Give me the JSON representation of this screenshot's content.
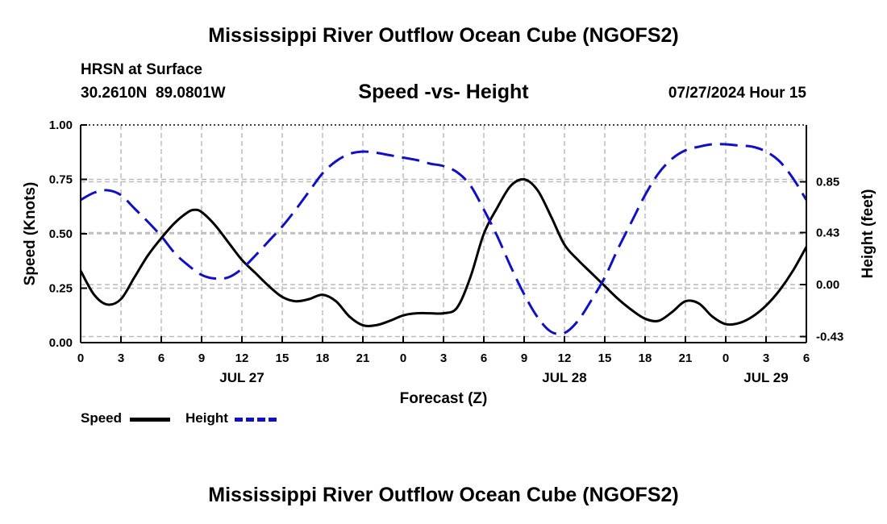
{
  "header": {
    "title": "Mississippi River Outflow Ocean Cube (NGOFS2)",
    "station_name": "HRSN at Surface",
    "coordinates": "30.2610N  89.0801W",
    "subtitle": "Speed -vs- Height",
    "datetime": "07/27/2024 Hour 15"
  },
  "footer": {
    "title": "Mississippi River Outflow Ocean Cube (NGOFS2)"
  },
  "legend": {
    "speed_label": "Speed",
    "height_label": "Height"
  },
  "colors": {
    "speed": "#000000",
    "height": "#1010c8",
    "grid": "#bbbbbb"
  },
  "chart_data": {
    "type": "line",
    "xlabel": "Forecast (Z)",
    "ylabel": "Speed (Knots)",
    "ylabel_right": "Height (feet)",
    "x_unit": "hours since 07/27 00Z",
    "xlim": [
      0,
      54
    ],
    "x_ticks": [
      0,
      3,
      6,
      9,
      12,
      15,
      18,
      21,
      24,
      27,
      30,
      33,
      36,
      39,
      42,
      45,
      48,
      51,
      54
    ],
    "x_tick_labels": [
      "0",
      "3",
      "6",
      "9",
      "12",
      "15",
      "18",
      "21",
      "0",
      "3",
      "6",
      "9",
      "12",
      "15",
      "18",
      "21",
      "0",
      "3",
      "6"
    ],
    "day_labels": [
      {
        "x": 12,
        "label": "JUL 27"
      },
      {
        "x": 36,
        "label": "JUL 28"
      },
      {
        "x": 51,
        "label": "JUL 29"
      }
    ],
    "ylim": [
      0,
      1.0
    ],
    "y_ticks": [
      0.0,
      0.25,
      0.5,
      0.75,
      1.0
    ],
    "y_tick_labels": [
      "0.00",
      "0.25",
      "0.50",
      "0.75",
      "1.00"
    ],
    "ylim_right": [
      -0.48,
      1.32
    ],
    "y_right_ticks": [
      -0.43,
      0.0,
      0.43,
      0.85
    ],
    "y_right_tick_labels": [
      "-0.43",
      "0.00",
      "0.43",
      "0.85"
    ],
    "grid": true,
    "series": [
      {
        "name": "Speed",
        "axis": "left",
        "style": "solid",
        "x": [
          0,
          1,
          2,
          3,
          4,
          5,
          6,
          7,
          8,
          8.5,
          9,
          10,
          11,
          12,
          13,
          14,
          15,
          16,
          17,
          18,
          19,
          20,
          21,
          22,
          23,
          24,
          25,
          26,
          27,
          28,
          29,
          30,
          31,
          32,
          33,
          34,
          35,
          36,
          37,
          38,
          39,
          40,
          41,
          42,
          43,
          44,
          45,
          46,
          47,
          48,
          49,
          50,
          51,
          52,
          53,
          54
        ],
        "y": [
          0.33,
          0.22,
          0.175,
          0.2,
          0.3,
          0.4,
          0.48,
          0.55,
          0.6,
          0.61,
          0.6,
          0.54,
          0.46,
          0.38,
          0.32,
          0.26,
          0.21,
          0.19,
          0.2,
          0.22,
          0.19,
          0.12,
          0.08,
          0.08,
          0.1,
          0.125,
          0.135,
          0.135,
          0.135,
          0.16,
          0.3,
          0.5,
          0.62,
          0.72,
          0.75,
          0.7,
          0.58,
          0.45,
          0.38,
          0.32,
          0.26,
          0.2,
          0.15,
          0.11,
          0.1,
          0.14,
          0.19,
          0.18,
          0.12,
          0.085,
          0.09,
          0.12,
          0.17,
          0.24,
          0.33,
          0.44
        ]
      },
      {
        "name": "Height",
        "axis": "right",
        "style": "dashed",
        "x": [
          0,
          1,
          2,
          3,
          4,
          5,
          6,
          7,
          8,
          9,
          10,
          11,
          12,
          13,
          14,
          15,
          16,
          17,
          18,
          19,
          20,
          21,
          22,
          23,
          24,
          25,
          26,
          27,
          28,
          29,
          30,
          31,
          32,
          33,
          34,
          35,
          36,
          37,
          38,
          39,
          40,
          41,
          42,
          43,
          44,
          45,
          46,
          47,
          48,
          49,
          50,
          51,
          52,
          53,
          54
        ],
        "y": [
          0.7,
          0.76,
          0.78,
          0.74,
          0.63,
          0.52,
          0.4,
          0.26,
          0.16,
          0.08,
          0.05,
          0.06,
          0.13,
          0.24,
          0.36,
          0.48,
          0.62,
          0.77,
          0.92,
          1.02,
          1.08,
          1.1,
          1.09,
          1.07,
          1.05,
          1.03,
          1.0,
          0.98,
          0.93,
          0.82,
          0.62,
          0.4,
          0.15,
          -0.08,
          -0.27,
          -0.39,
          -0.4,
          -0.3,
          -0.13,
          0.06,
          0.3,
          0.52,
          0.74,
          0.92,
          1.04,
          1.11,
          1.14,
          1.16,
          1.16,
          1.15,
          1.14,
          1.1,
          1.02,
          0.88,
          0.7
        ]
      }
    ]
  }
}
